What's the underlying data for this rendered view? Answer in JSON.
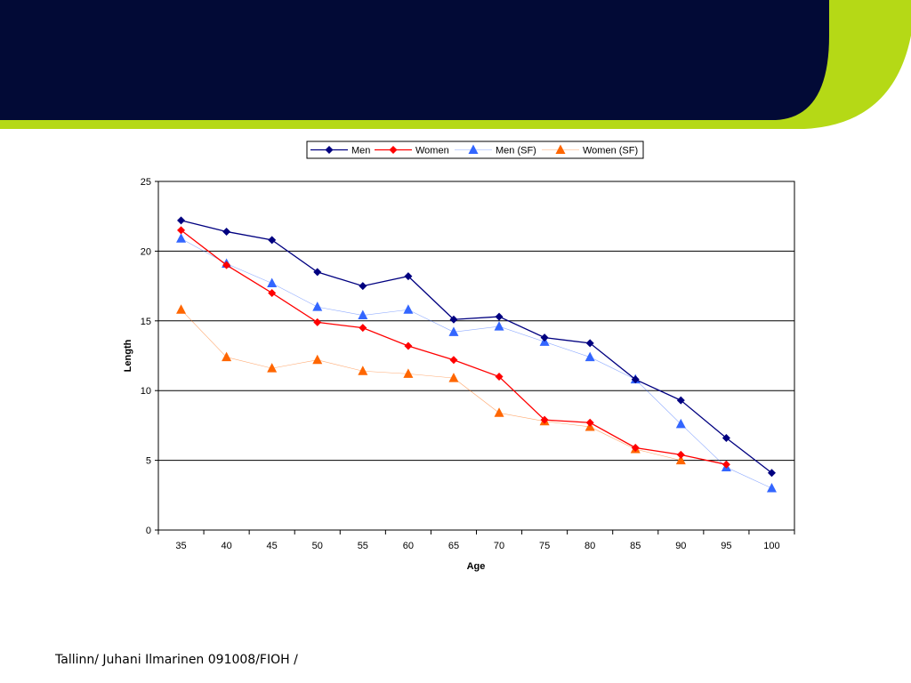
{
  "slide": {
    "footer_text": "Tallinn/ Juhani Ilmarinen 091008/FIOH /",
    "header_color": "#020A36",
    "accent_color": "#B5D916"
  },
  "chart_data": {
    "type": "line",
    "title": "",
    "xlabel": "Age",
    "ylabel": "Length",
    "x": [
      35,
      40,
      45,
      50,
      55,
      60,
      65,
      70,
      75,
      80,
      85,
      90,
      95,
      100
    ],
    "ylim": [
      0,
      25
    ],
    "yticks": [
      0,
      5,
      10,
      15,
      20,
      25
    ],
    "grid": true,
    "legend_position": "top",
    "series": [
      {
        "name": "Men",
        "color": "#000080",
        "marker": "diamond",
        "line": "solid",
        "values": [
          22.2,
          21.4,
          20.8,
          18.5,
          17.5,
          18.2,
          15.1,
          15.3,
          13.8,
          13.4,
          10.8,
          9.3,
          6.6,
          4.1
        ]
      },
      {
        "name": "Women",
        "color": "#FF0000",
        "marker": "diamond",
        "line": "solid",
        "values": [
          21.5,
          19.0,
          17.0,
          14.9,
          14.5,
          13.2,
          12.2,
          11.0,
          7.9,
          7.7,
          5.9,
          5.4,
          4.7,
          null
        ]
      },
      {
        "name": "Men (SF)",
        "color": "#3366FF",
        "marker": "triangle",
        "line": "thin",
        "values": [
          20.9,
          19.1,
          17.7,
          16.0,
          15.4,
          15.8,
          14.2,
          14.6,
          13.5,
          12.4,
          10.8,
          7.6,
          4.5,
          3.0
        ]
      },
      {
        "name": "Women (SF)",
        "color": "#FF6600",
        "marker": "triangle",
        "line": "thin",
        "values": [
          15.8,
          12.4,
          11.6,
          12.2,
          11.4,
          11.2,
          10.9,
          8.4,
          7.8,
          7.4,
          5.8,
          5.0,
          null,
          null
        ]
      }
    ]
  }
}
